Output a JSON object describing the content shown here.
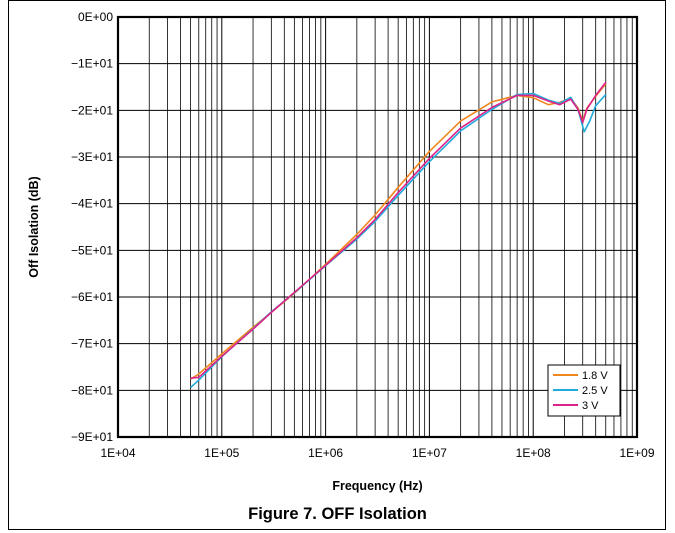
{
  "chart_data": {
    "type": "line",
    "xlabel": "Frequency (Hz)",
    "ylabel": "Off Isolation (dB)",
    "x_scale": "log",
    "xlim": [
      10000,
      1000000000
    ],
    "ylim": [
      -90,
      0
    ],
    "x_ticks": [
      10000,
      100000,
      1000000,
      10000000,
      100000000,
      1000000000
    ],
    "x_tick_labels": [
      "1E+04",
      "1E+05",
      "1E+06",
      "1E+07",
      "1E+08",
      "1E+09"
    ],
    "y_ticks": [
      0,
      -10,
      -20,
      -30,
      -40,
      -50,
      -60,
      -70,
      -80,
      -90
    ],
    "y_tick_labels": [
      "0E+00",
      "−1E+01",
      "−2E+01",
      "−3E+01",
      "−4E+01",
      "−5E+01",
      "−6E+01",
      "−7E+01",
      "−8E+01",
      "−9E+01"
    ],
    "grid": true,
    "legend_position": "bottom-right",
    "series": [
      {
        "name": "1.8 V",
        "color": "#F0861E",
        "points": [
          [
            50000,
            -77.6
          ],
          [
            60000,
            -76.5
          ],
          [
            100000,
            -72.2
          ],
          [
            200000,
            -66.5
          ],
          [
            300000,
            -63.3
          ],
          [
            500000,
            -59.2
          ],
          [
            1000000,
            -53.0
          ],
          [
            2000000,
            -46.6
          ],
          [
            3000000,
            -42.4
          ],
          [
            5000000,
            -36.5
          ],
          [
            10000000,
            -28.8
          ],
          [
            20000000,
            -22.3
          ],
          [
            40000000,
            -18.2
          ],
          [
            70000000,
            -16.8
          ],
          [
            100000000,
            -17.3
          ],
          [
            140000000,
            -18.8
          ],
          [
            180000000,
            -18.3
          ],
          [
            230000000,
            -17.4
          ],
          [
            270000000,
            -19.5
          ],
          [
            300000000,
            -22.3
          ],
          [
            330000000,
            -19.5
          ],
          [
            400000000,
            -17.0
          ],
          [
            500000000,
            -14.3
          ]
        ]
      },
      {
        "name": "2.5 V",
        "color": "#22AADD",
        "points": [
          [
            50000,
            -79.4
          ],
          [
            60000,
            -77.8
          ],
          [
            100000,
            -72.8
          ],
          [
            200000,
            -66.8
          ],
          [
            300000,
            -63.2
          ],
          [
            500000,
            -59.1
          ],
          [
            1000000,
            -53.3
          ],
          [
            2000000,
            -47.6
          ],
          [
            3000000,
            -43.8
          ],
          [
            5000000,
            -38.2
          ],
          [
            10000000,
            -31.0
          ],
          [
            20000000,
            -24.4
          ],
          [
            40000000,
            -19.8
          ],
          [
            70000000,
            -16.6
          ],
          [
            100000000,
            -16.4
          ],
          [
            140000000,
            -17.8
          ],
          [
            180000000,
            -18.5
          ],
          [
            230000000,
            -17.2
          ],
          [
            270000000,
            -19.8
          ],
          [
            310000000,
            -24.6
          ],
          [
            350000000,
            -22.3
          ],
          [
            400000000,
            -19.0
          ],
          [
            500000000,
            -16.6
          ]
        ]
      },
      {
        "name": "3 V",
        "color": "#DD2288",
        "points": [
          [
            50000,
            -77.4
          ],
          [
            60000,
            -77.2
          ],
          [
            100000,
            -72.7
          ],
          [
            200000,
            -66.9
          ],
          [
            300000,
            -63.3
          ],
          [
            500000,
            -59.0
          ],
          [
            1000000,
            -53.2
          ],
          [
            2000000,
            -47.3
          ],
          [
            3000000,
            -43.4
          ],
          [
            5000000,
            -37.6
          ],
          [
            10000000,
            -30.3
          ],
          [
            20000000,
            -23.8
          ],
          [
            40000000,
            -19.4
          ],
          [
            70000000,
            -16.8
          ],
          [
            100000000,
            -16.8
          ],
          [
            140000000,
            -18.0
          ],
          [
            180000000,
            -18.8
          ],
          [
            230000000,
            -17.6
          ],
          [
            270000000,
            -19.8
          ],
          [
            300000000,
            -22.6
          ],
          [
            330000000,
            -19.7
          ],
          [
            400000000,
            -16.8
          ],
          [
            500000000,
            -14.0
          ]
        ]
      }
    ]
  },
  "caption": "Figure 7. OFF Isolation"
}
